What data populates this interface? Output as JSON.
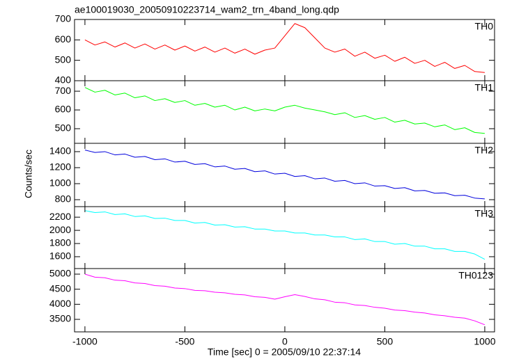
{
  "title": "ae100019030_20050910223714_wam2_trn_4band_long.qdp",
  "ylabel": "Counts/sec",
  "xlabel": "Time [sec] 0 = 2005/09/10 22:37:14",
  "chart_data": [
    {
      "type": "line",
      "x": [
        -1000,
        -950,
        -900,
        -850,
        -800,
        -750,
        -700,
        -650,
        -600,
        -550,
        -500,
        -450,
        -400,
        -350,
        -300,
        -250,
        -200,
        -150,
        -100,
        -50,
        0,
        50,
        100,
        150,
        200,
        250,
        300,
        350,
        400,
        450,
        500,
        550,
        600,
        650,
        700,
        750,
        800,
        850,
        900,
        950,
        1000
      ],
      "xlim": [
        -1052,
        1049
      ],
      "xticks": [
        -1000,
        -500,
        0,
        500,
        1000
      ],
      "ylim": [
        400,
        700
      ],
      "yticks": [
        400,
        500,
        600,
        700
      ],
      "series": [
        {
          "name": "TH0",
          "color": "#ff0000",
          "values": [
            600,
            575,
            590,
            565,
            585,
            560,
            580,
            555,
            575,
            550,
            570,
            545,
            565,
            540,
            560,
            535,
            555,
            530,
            550,
            560,
            620,
            680,
            660,
            610,
            560,
            540,
            555,
            520,
            540,
            510,
            525,
            495,
            515,
            485,
            500,
            470,
            490,
            460,
            475,
            445,
            440
          ]
        }
      ]
    },
    {
      "type": "line",
      "x": [
        -1000,
        -950,
        -900,
        -850,
        -800,
        -750,
        -700,
        -650,
        -600,
        -550,
        -500,
        -450,
        -400,
        -350,
        -300,
        -250,
        -200,
        -150,
        -100,
        -50,
        0,
        50,
        100,
        150,
        200,
        250,
        300,
        350,
        400,
        450,
        500,
        550,
        600,
        650,
        700,
        750,
        800,
        850,
        900,
        950,
        1000
      ],
      "xlim": [
        -1052,
        1049
      ],
      "xticks": [
        -1000,
        -500,
        0,
        500,
        1000
      ],
      "ylim": [
        422,
        756
      ],
      "yticks": [
        500,
        600,
        700
      ],
      "series": [
        {
          "name": "TH1",
          "color": "#00ff00",
          "values": [
            720,
            695,
            705,
            680,
            690,
            665,
            675,
            650,
            660,
            640,
            650,
            625,
            635,
            615,
            625,
            600,
            615,
            595,
            605,
            595,
            615,
            625,
            610,
            600,
            590,
            575,
            585,
            560,
            570,
            550,
            560,
            535,
            545,
            525,
            530,
            510,
            520,
            495,
            505,
            480,
            475
          ]
        }
      ]
    },
    {
      "type": "line",
      "x": [
        -1000,
        -950,
        -900,
        -850,
        -800,
        -750,
        -700,
        -650,
        -600,
        -550,
        -500,
        -450,
        -400,
        -350,
        -300,
        -250,
        -200,
        -150,
        -100,
        -50,
        0,
        50,
        100,
        150,
        200,
        250,
        300,
        350,
        400,
        450,
        500,
        550,
        600,
        650,
        700,
        750,
        800,
        850,
        900,
        950,
        1000
      ],
      "xlim": [
        -1052,
        1049
      ],
      "xticks": [
        -1000,
        -500,
        0,
        500,
        1000
      ],
      "ylim": [
        713,
        1504
      ],
      "yticks": [
        800,
        1000,
        1200,
        1400
      ],
      "series": [
        {
          "name": "TH2",
          "color": "#0000dd",
          "values": [
            1420,
            1390,
            1400,
            1360,
            1370,
            1330,
            1340,
            1300,
            1310,
            1270,
            1280,
            1240,
            1250,
            1210,
            1220,
            1180,
            1190,
            1150,
            1160,
            1120,
            1130,
            1090,
            1100,
            1060,
            1070,
            1030,
            1040,
            1000,
            1010,
            970,
            975,
            940,
            950,
            910,
            915,
            880,
            885,
            850,
            855,
            820,
            810
          ]
        }
      ]
    },
    {
      "type": "line",
      "x": [
        -1000,
        -950,
        -900,
        -850,
        -800,
        -750,
        -700,
        -650,
        -600,
        -550,
        -500,
        -450,
        -400,
        -350,
        -300,
        -250,
        -200,
        -150,
        -100,
        -50,
        0,
        50,
        100,
        150,
        200,
        250,
        300,
        350,
        400,
        450,
        500,
        550,
        600,
        650,
        700,
        750,
        800,
        850,
        900,
        950,
        1000
      ],
      "xlim": [
        -1052,
        1049
      ],
      "xticks": [
        -1000,
        -500,
        0,
        500,
        1000
      ],
      "ylim": [
        1420,
        2360
      ],
      "yticks": [
        1600,
        1800,
        2000,
        2200
      ],
      "series": [
        {
          "name": "TH3",
          "color": "#00ffff",
          "values": [
            2300,
            2270,
            2280,
            2240,
            2250,
            2210,
            2220,
            2180,
            2185,
            2150,
            2150,
            2110,
            2120,
            2080,
            2085,
            2050,
            2055,
            2020,
            2020,
            1990,
            1990,
            1960,
            1960,
            1930,
            1930,
            1900,
            1900,
            1860,
            1870,
            1830,
            1830,
            1790,
            1800,
            1760,
            1760,
            1720,
            1720,
            1680,
            1680,
            1640,
            1560
          ]
        }
      ]
    },
    {
      "type": "line",
      "x": [
        -1000,
        -950,
        -900,
        -850,
        -800,
        -750,
        -700,
        -650,
        -600,
        -550,
        -500,
        -450,
        -400,
        -350,
        -300,
        -250,
        -200,
        -150,
        -100,
        -50,
        0,
        50,
        100,
        150,
        200,
        250,
        300,
        350,
        400,
        450,
        500,
        550,
        600,
        650,
        700,
        750,
        800,
        850,
        900,
        950,
        1000
      ],
      "xlim": [
        -1052,
        1049
      ],
      "xticks": [
        -1000,
        -500,
        0,
        500,
        1000
      ],
      "ylim": [
        3085,
        5185
      ],
      "yticks": [
        3500,
        4000,
        4500,
        5000
      ],
      "series": [
        {
          "name": "TH0123",
          "color": "#ff00ff",
          "values": [
            5000,
            4900,
            4880,
            4800,
            4780,
            4710,
            4690,
            4620,
            4600,
            4540,
            4520,
            4460,
            4450,
            4400,
            4380,
            4330,
            4310,
            4250,
            4230,
            4170,
            4250,
            4320,
            4260,
            4180,
            4150,
            4070,
            4050,
            3980,
            3960,
            3900,
            3870,
            3810,
            3790,
            3740,
            3710,
            3650,
            3620,
            3570,
            3540,
            3450,
            3320
          ]
        }
      ]
    }
  ]
}
